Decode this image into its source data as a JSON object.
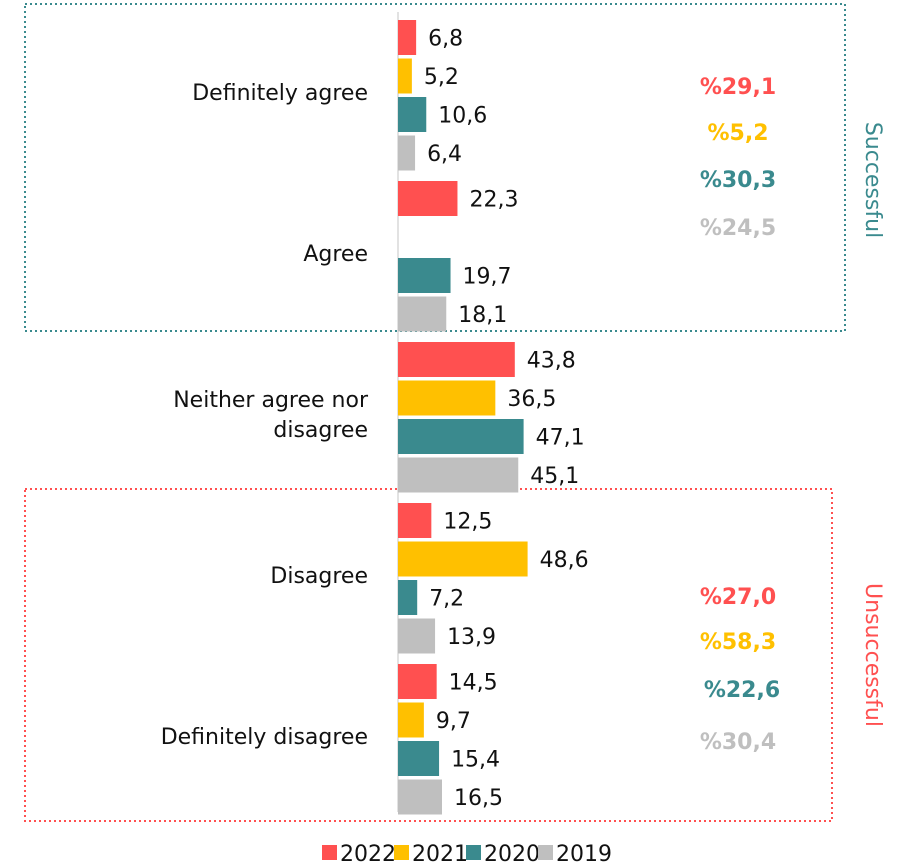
{
  "chart_data": {
    "type": "hbar",
    "categories": [
      "Definitely agree",
      "Agree",
      "Neither agree nor disagree",
      "Disagree",
      "Definitely disagree"
    ],
    "series": [
      {
        "name": "2022",
        "color": "#ff5050",
        "values": [
          6.8,
          22.3,
          43.8,
          12.5,
          14.5
        ],
        "value_labels": [
          "6,8",
          "22,3",
          "43,8",
          "12,5",
          "14,5"
        ]
      },
      {
        "name": "2021",
        "color": "#ffc000",
        "values": [
          5.2,
          null,
          36.5,
          48.6,
          9.7
        ],
        "value_labels": [
          "5,2",
          null,
          "36,5",
          "48,6",
          "9,7"
        ]
      },
      {
        "name": "2020",
        "color": "#3a8a8e",
        "values": [
          10.6,
          19.7,
          47.1,
          7.2,
          15.4
        ],
        "value_labels": [
          "10,6",
          "19,7",
          "47,1",
          "7,2",
          "15,4"
        ]
      },
      {
        "name": "2019",
        "color": "#bfbfbf",
        "values": [
          6.4,
          18.1,
          45.1,
          13.9,
          16.5
        ],
        "value_labels": [
          "6,4",
          "18,1",
          "45,1",
          "13,9",
          "16,5"
        ]
      }
    ],
    "xlim": [
      0,
      165
    ],
    "annotations": [
      {
        "text": "Successful",
        "color": "#3a8a8e",
        "totals": [
          "%29,1",
          "%5,2",
          "%30,3",
          "%24,5"
        ]
      },
      {
        "text": "Unsuccessful",
        "color": "#ff5050",
        "totals": [
          "%27,0",
          "%58,3",
          "%22,6",
          "%30,4"
        ]
      }
    ],
    "legend": "bottom"
  }
}
